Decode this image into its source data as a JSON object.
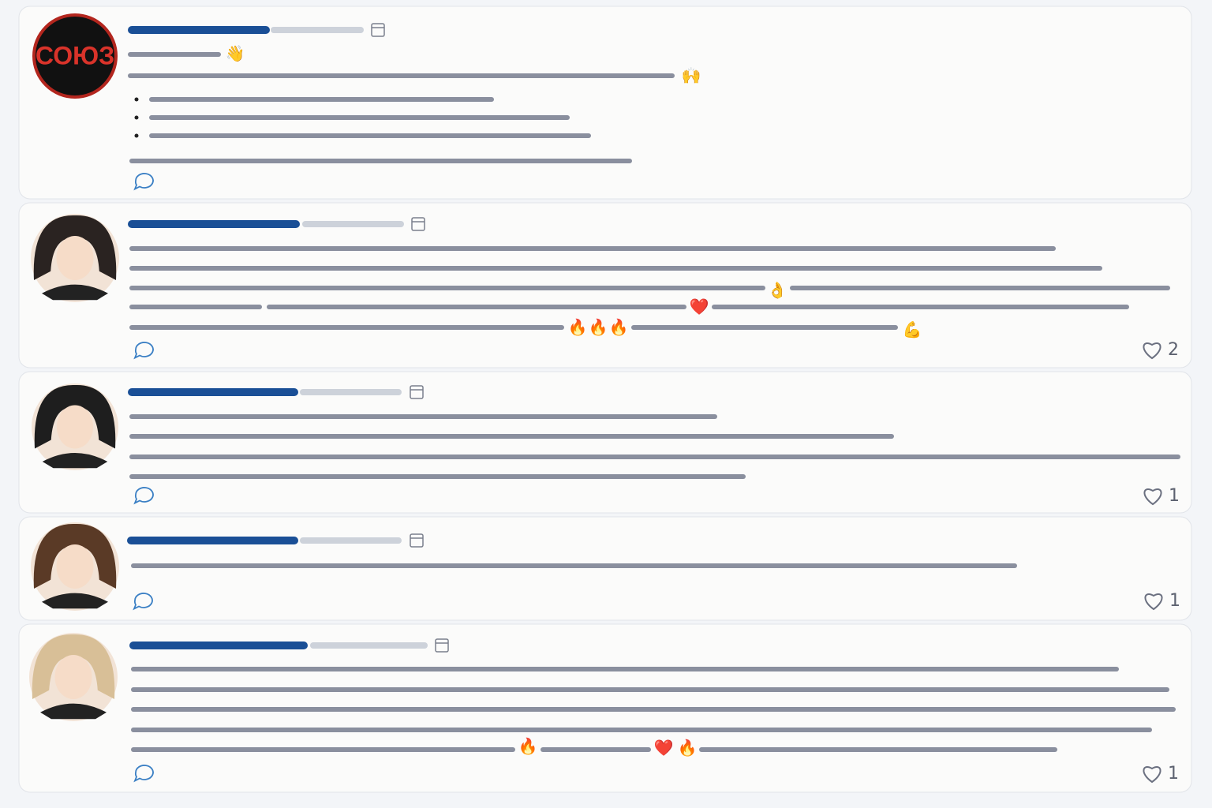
{
  "posts": [
    {
      "avatar_text": "СОЮЗ",
      "emojis": [
        "👋",
        "🙌"
      ]
    },
    {
      "emojis": [
        "👌",
        "❤️",
        "🔥",
        "🔥",
        "🔥",
        "💪"
      ],
      "likes": "2"
    },
    {
      "emojis": [],
      "likes": "1"
    },
    {
      "emojis": [],
      "likes": "1"
    },
    {
      "emojis": [
        "🔥",
        "❤️",
        "🔥"
      ],
      "likes": "1"
    }
  ]
}
